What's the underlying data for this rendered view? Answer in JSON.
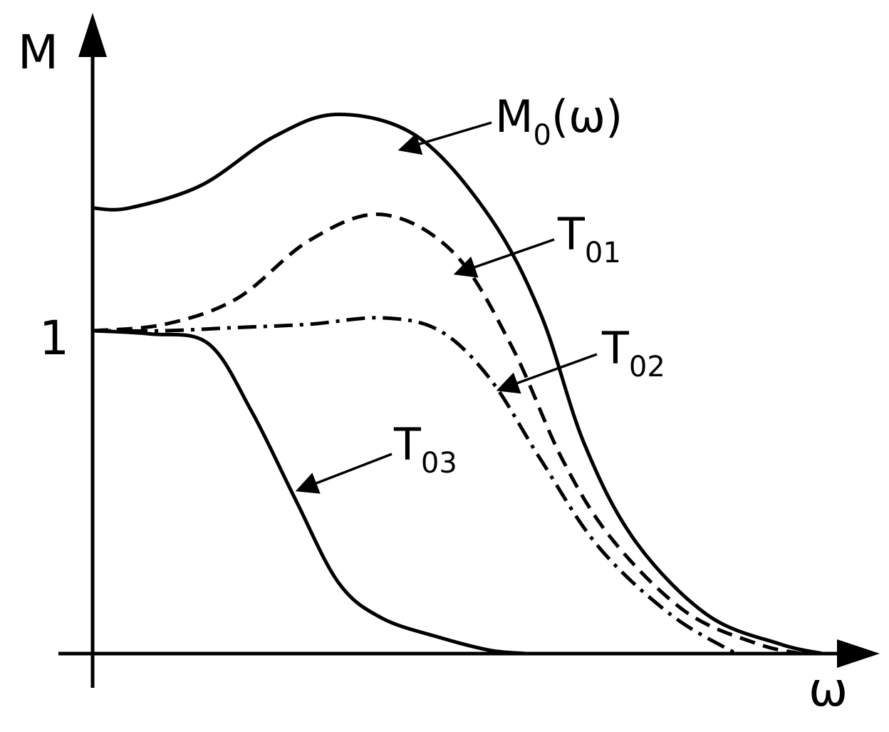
{
  "chart_data": {
    "type": "line",
    "xlabel": "ω",
    "ylabel": "M",
    "y_ticks": [
      {
        "value": 1,
        "label": "1"
      }
    ],
    "xlim": [
      0,
      10
    ],
    "ylim": [
      0,
      2.0
    ],
    "grid": false,
    "legend": "none",
    "series": [
      {
        "name_main": "M",
        "name_sub": "0",
        "name_suffix": "(ω)",
        "style": "solid",
        "x": [
          0,
          0.5,
          1.5,
          2.5,
          3.4,
          4.5,
          5.5,
          6.2,
          6.8,
          7.5,
          8.5,
          9.5,
          10.1
        ],
        "y": [
          1.38,
          1.38,
          1.45,
          1.6,
          1.67,
          1.6,
          1.35,
          1.05,
          0.65,
          0.35,
          0.12,
          0.03,
          0
        ]
      },
      {
        "name_main": "T",
        "name_sub": "01",
        "style": "dashed",
        "x": [
          0,
          1,
          2,
          3,
          4,
          5,
          5.8,
          6.5,
          7.2,
          8.2,
          9.2,
          9.8
        ],
        "y": [
          1.0,
          1.02,
          1.1,
          1.28,
          1.36,
          1.24,
          0.95,
          0.6,
          0.35,
          0.13,
          0.03,
          0
        ]
      },
      {
        "name_main": "T",
        "name_sub": "02",
        "style": "dashdot",
        "x": [
          0,
          1,
          2,
          3,
          4,
          4.8,
          5.5,
          6.2,
          7.0,
          8.0,
          8.9
        ],
        "y": [
          1.0,
          1.0,
          1.01,
          1.02,
          1.04,
          1.0,
          0.85,
          0.6,
          0.33,
          0.12,
          0
        ]
      },
      {
        "name_main": "T",
        "name_sub": "03",
        "style": "solid",
        "x": [
          0,
          0.8,
          1.6,
          2.2,
          2.8,
          3.4,
          4.0,
          4.8,
          5.5,
          6.0
        ],
        "y": [
          1.0,
          0.99,
          0.96,
          0.75,
          0.48,
          0.22,
          0.11,
          0.05,
          0.01,
          0
        ]
      }
    ]
  }
}
